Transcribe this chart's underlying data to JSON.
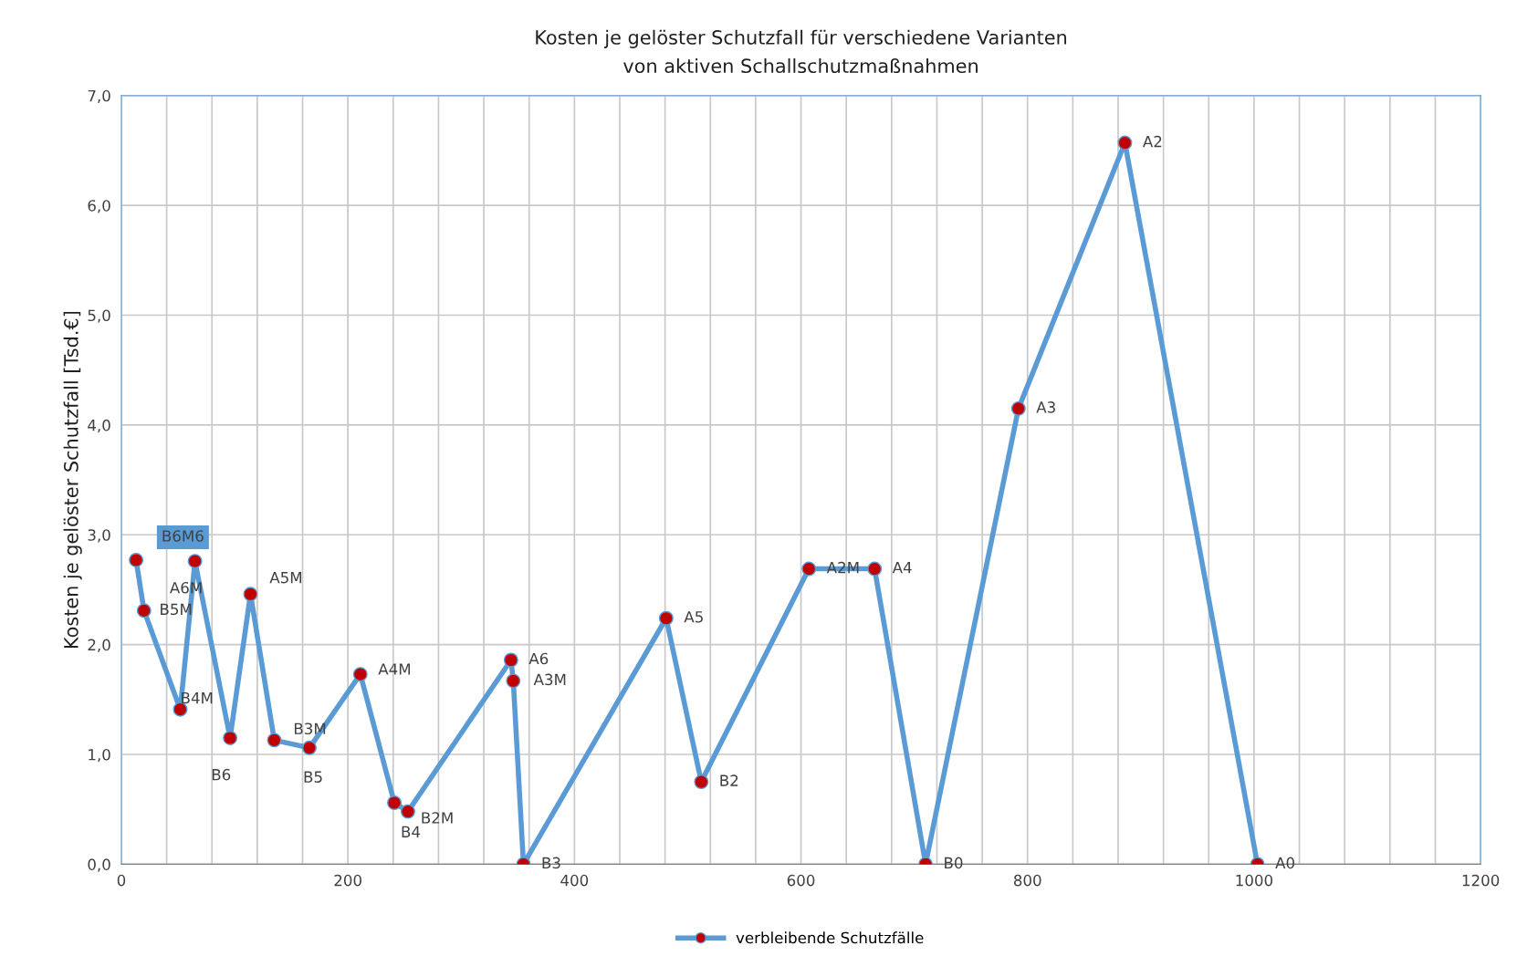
{
  "chart_data": {
    "type": "line",
    "title": "Kosten je gelöster Schutzfall für verschiedene Varianten\nvon aktiven Schallschutzmaßnahmen",
    "ylabel": "Kosten je gelöster Schutzfall [Tsd.€]",
    "x": [
      13,
      20,
      52,
      65,
      96,
      114,
      135,
      166,
      211,
      241,
      253,
      344,
      346,
      355,
      481,
      512,
      607,
      665,
      710,
      792,
      886,
      1003
    ],
    "series": [
      {
        "name": "verbleibende Schutzfälle",
        "color": "#5b9bd5",
        "colors": [
          "#c00000",
          "#c00000",
          "#c00000",
          "#c00000",
          "#c00000",
          "#c00000",
          "#c00000",
          "#c00000",
          "#c00000",
          "#c00000",
          "#c00000",
          "#c00000",
          "#c00000",
          "#c00000",
          "#c00000",
          "#c00000",
          "#c00000",
          "#c00000",
          "#c00000",
          "#c00000",
          "#c00000",
          "#c00000"
        ],
        "values": [
          2.77,
          2.31,
          1.41,
          2.76,
          1.15,
          2.46,
          1.13,
          1.06,
          1.73,
          0.56,
          0.48,
          1.86,
          1.67,
          0,
          2.24,
          0.75,
          2.69,
          2.69,
          0,
          4.15,
          6.57,
          0
        ]
      }
    ],
    "annotations": [
      {
        "text": "B6M6",
        "x": 13,
        "y": 2.77
      },
      {
        "text": "B5M",
        "x": 20,
        "y": 2.31
      },
      {
        "text": "B4M",
        "x": 52,
        "y": 1.41
      },
      {
        "text": "A6M",
        "x": 65,
        "y": 2.76
      },
      {
        "text": "B6",
        "x": 96,
        "y": 1.15
      },
      {
        "text": "A5M",
        "x": 114,
        "y": 2.46
      },
      {
        "text": "B3M",
        "x": 135,
        "y": 1.13
      },
      {
        "text": "B5",
        "x": 166,
        "y": 1.06
      },
      {
        "text": "A4M",
        "x": 211,
        "y": 1.73
      },
      {
        "text": "B4",
        "x": 241,
        "y": 0.56
      },
      {
        "text": "B2M",
        "x": 253,
        "y": 0.48
      },
      {
        "text": "A6",
        "x": 344,
        "y": 1.86
      },
      {
        "text": "A3M",
        "x": 346,
        "y": 1.67
      },
      {
        "text": "B3",
        "x": 355,
        "y": 0
      },
      {
        "text": "A5",
        "x": 481,
        "y": 2.24
      },
      {
        "text": "B2",
        "x": 512,
        "y": 0.75
      },
      {
        "text": "A2M",
        "x": 607,
        "y": 2.69
      },
      {
        "text": "A4",
        "x": 665,
        "y": 2.69
      },
      {
        "text": "B0",
        "x": 710,
        "y": 0
      },
      {
        "text": "A3",
        "x": 792,
        "y": 4.15
      },
      {
        "text": "A2",
        "x": 886,
        "y": 6.57
      },
      {
        "text": "A0",
        "x": 1003,
        "y": 0
      }
    ],
    "xlim": [
      0,
      1200
    ],
    "xticks": [
      0,
      {
        "value": 40,
        "label": null
      },
      {
        "value": 80,
        "label": null
      },
      {
        "value": 120,
        "label": null
      },
      {
        "value": 160,
        "label": null
      },
      200,
      {
        "value": 240,
        "label": null
      },
      {
        "value": 280,
        "label": null
      },
      {
        "value": 320,
        "label": null
      },
      {
        "value": 360,
        "label": null
      },
      400,
      {
        "value": 440,
        "label": null
      },
      {
        "value": 480,
        "label": null
      },
      {
        "value": 520,
        "label": null
      },
      {
        "value": 560,
        "label": null
      },
      600,
      {
        "value": 640,
        "label": null
      },
      {
        "value": 680,
        "label": null
      },
      {
        "value": 720,
        "label": null
      },
      {
        "value": 760,
        "label": null
      },
      800,
      {
        "value": 840,
        "label": null
      },
      {
        "value": 880,
        "label": null
      },
      {
        "value": 920,
        "label": null
      },
      {
        "value": 960,
        "label": null
      },
      1000,
      {
        "value": 1040,
        "label": null
      },
      {
        "value": 1080,
        "label": null
      },
      {
        "value": 1120,
        "label": null
      },
      {
        "value": 1160,
        "label": null
      },
      1200
    ],
    "ylim": [
      0,
      7
    ],
    "yticks": [
      {
        "value": 0,
        "label": "0,0"
      },
      {
        "value": 1,
        "label": "1,0"
      },
      {
        "value": 2,
        "label": "2,0"
      },
      {
        "value": 3,
        "label": "3,0"
      },
      {
        "value": 4,
        "label": "4,0"
      },
      {
        "value": 5,
        "label": "5,0"
      },
      {
        "value": 6,
        "label": "6,0"
      },
      {
        "value": 7,
        "label": "7,0"
      }
    ],
    "grid": true,
    "legend": "bottom",
    "marker": "circle",
    "line_style": "solid"
  }
}
